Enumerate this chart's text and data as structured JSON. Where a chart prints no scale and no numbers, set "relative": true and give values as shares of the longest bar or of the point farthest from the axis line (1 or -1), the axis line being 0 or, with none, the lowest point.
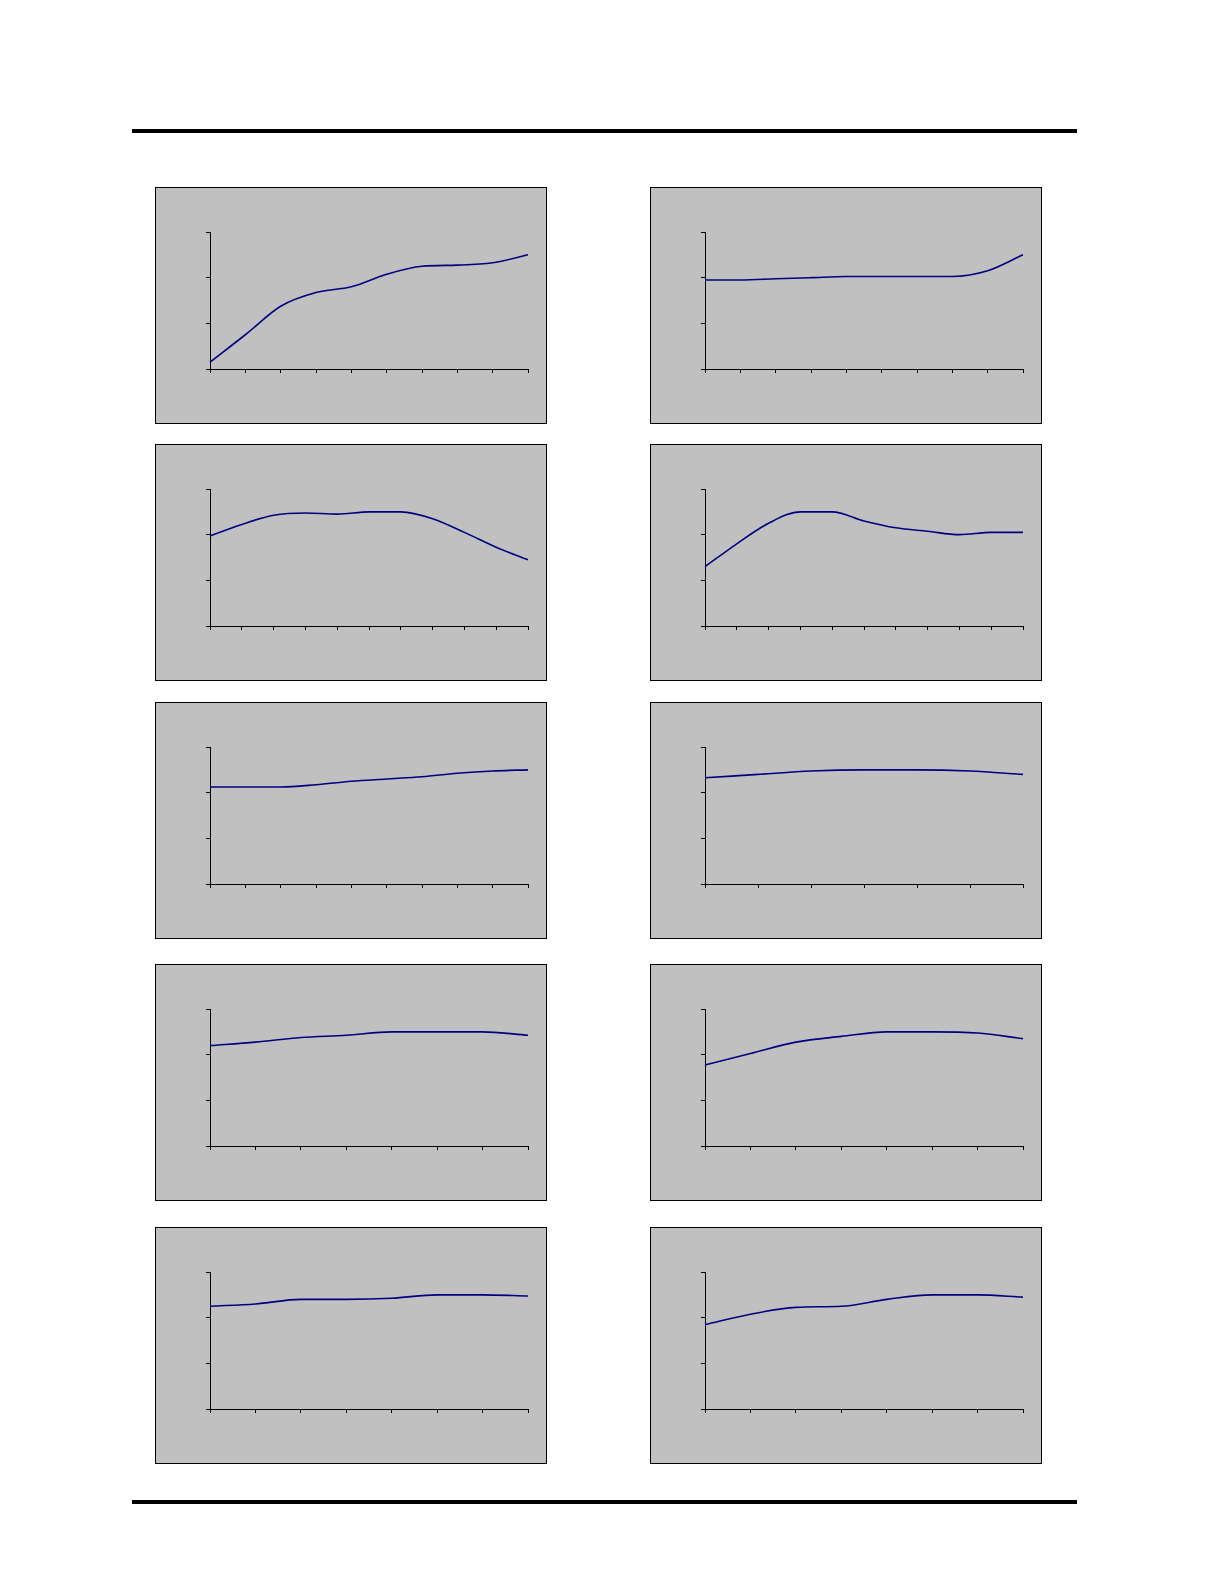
{
  "chart_data": [
    {
      "type": "line",
      "relative": true,
      "legend": false,
      "tick_labels": false,
      "marker": "none",
      "categories": [
        null,
        null,
        null,
        null,
        null,
        null,
        null,
        null,
        null,
        null
      ],
      "series": [
        {
          "color": "#000080",
          "values": [
            0.06,
            0.3,
            0.55,
            0.67,
            0.72,
            0.83,
            0.9,
            0.91,
            0.93,
            1
          ]
        }
      ]
    },
    {
      "type": "line",
      "relative": true,
      "legend": false,
      "tick_labels": false,
      "marker": "none",
      "categories": [
        null,
        null,
        null,
        null,
        null,
        null,
        null,
        null,
        null,
        null
      ],
      "series": [
        {
          "color": "#000080",
          "values": [
            0.78,
            0.78,
            0.79,
            0.8,
            0.81,
            0.81,
            0.81,
            0.81,
            0.86,
            1
          ]
        }
      ]
    },
    {
      "type": "line",
      "relative": true,
      "legend": false,
      "tick_labels": false,
      "marker": "none",
      "categories": [
        null,
        null,
        null,
        null,
        null,
        null,
        null,
        null,
        null,
        null,
        null
      ],
      "series": [
        {
          "color": "#000080",
          "values": [
            0.79,
            0.89,
            0.97,
            0.99,
            0.98,
            1,
            1,
            0.94,
            0.82,
            0.69,
            0.58
          ]
        }
      ]
    },
    {
      "type": "line",
      "relative": true,
      "legend": false,
      "tick_labels": false,
      "marker": "none",
      "categories": [
        null,
        null,
        null,
        null,
        null,
        null,
        null,
        null,
        null,
        null,
        null
      ],
      "series": [
        {
          "color": "#000080",
          "values": [
            0.52,
            0.72,
            0.9,
            1,
            1,
            0.92,
            0.86,
            0.83,
            0.8,
            0.82,
            0.82
          ]
        }
      ]
    },
    {
      "type": "line",
      "relative": true,
      "legend": false,
      "tick_labels": false,
      "marker": "none",
      "categories": [
        null,
        null,
        null,
        null,
        null,
        null,
        null,
        null,
        null,
        null
      ],
      "series": [
        {
          "color": "#000080",
          "values": [
            0.85,
            0.85,
            0.85,
            0.87,
            0.9,
            0.92,
            0.94,
            0.97,
            0.99,
            1
          ]
        }
      ]
    },
    {
      "type": "line",
      "relative": true,
      "legend": false,
      "tick_labels": false,
      "marker": "none",
      "categories": [
        null,
        null,
        null,
        null,
        null,
        null,
        null
      ],
      "series": [
        {
          "color": "#000080",
          "values": [
            0.93,
            0.96,
            0.99,
            1,
            1,
            0.99,
            0.96
          ]
        }
      ]
    },
    {
      "type": "line",
      "relative": true,
      "legend": false,
      "tick_labels": false,
      "marker": "none",
      "categories": [
        null,
        null,
        null,
        null,
        null,
        null,
        null,
        null
      ],
      "series": [
        {
          "color": "#000080",
          "values": [
            0.88,
            0.91,
            0.95,
            0.97,
            1,
            1,
            1,
            0.97
          ]
        }
      ]
    },
    {
      "type": "line",
      "relative": true,
      "legend": false,
      "tick_labels": false,
      "marker": "none",
      "categories": [
        null,
        null,
        null,
        null,
        null,
        null,
        null,
        null
      ],
      "series": [
        {
          "color": "#000080",
          "values": [
            0.71,
            0.81,
            0.91,
            0.96,
            1,
            1,
            0.99,
            0.94
          ]
        }
      ]
    },
    {
      "type": "line",
      "relative": true,
      "legend": false,
      "tick_labels": false,
      "marker": "none",
      "categories": [
        null,
        null,
        null,
        null,
        null,
        null,
        null,
        null
      ],
      "series": [
        {
          "color": "#000080",
          "values": [
            0.9,
            0.92,
            0.96,
            0.96,
            0.97,
            1,
            1,
            0.99
          ]
        }
      ]
    },
    {
      "type": "line",
      "relative": true,
      "legend": false,
      "tick_labels": false,
      "marker": "none",
      "categories": [
        null,
        null,
        null,
        null,
        null,
        null,
        null,
        null
      ],
      "series": [
        {
          "color": "#000080",
          "values": [
            0.74,
            0.83,
            0.89,
            0.9,
            0.96,
            1,
            1,
            0.98
          ]
        }
      ]
    }
  ]
}
